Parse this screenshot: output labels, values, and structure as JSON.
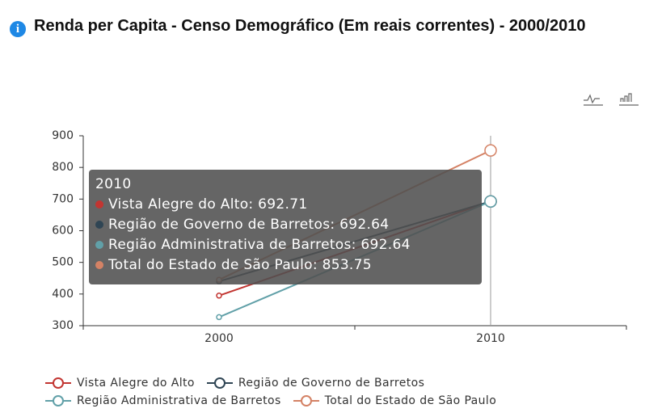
{
  "chart_data": {
    "type": "line",
    "title": "Renda per Capita - Censo Demográfico (Em reais correntes) - 2000/2010",
    "categories": [
      "2000",
      "2010"
    ],
    "series": [
      {
        "name": "Vista Alegre do Alto",
        "color": "#c23531",
        "values": [
          395,
          692.71
        ]
      },
      {
        "name": "Região de Governo de Barretos",
        "color": "#2f4554",
        "values": [
          440,
          692.64
        ]
      },
      {
        "name": "Região Administrativa de Barretos",
        "color": "#61a0a8",
        "values": [
          327,
          692.64
        ]
      },
      {
        "name": "Total do Estado de São Paulo",
        "color": "#d48265",
        "values": [
          445,
          853.75
        ]
      }
    ],
    "ylim": [
      300,
      900
    ],
    "yticks": [
      300,
      400,
      500,
      600,
      700,
      800,
      900
    ],
    "legend": "bottom",
    "tooltip": {
      "title": "2010",
      "rows": [
        "Vista Alegre do Alto: 692.71",
        "Região de Governo de Barretos: 692.64",
        "Região Administrativa de Barretos: 692.64",
        "Total do Estado de São Paulo: 853.75"
      ]
    }
  }
}
